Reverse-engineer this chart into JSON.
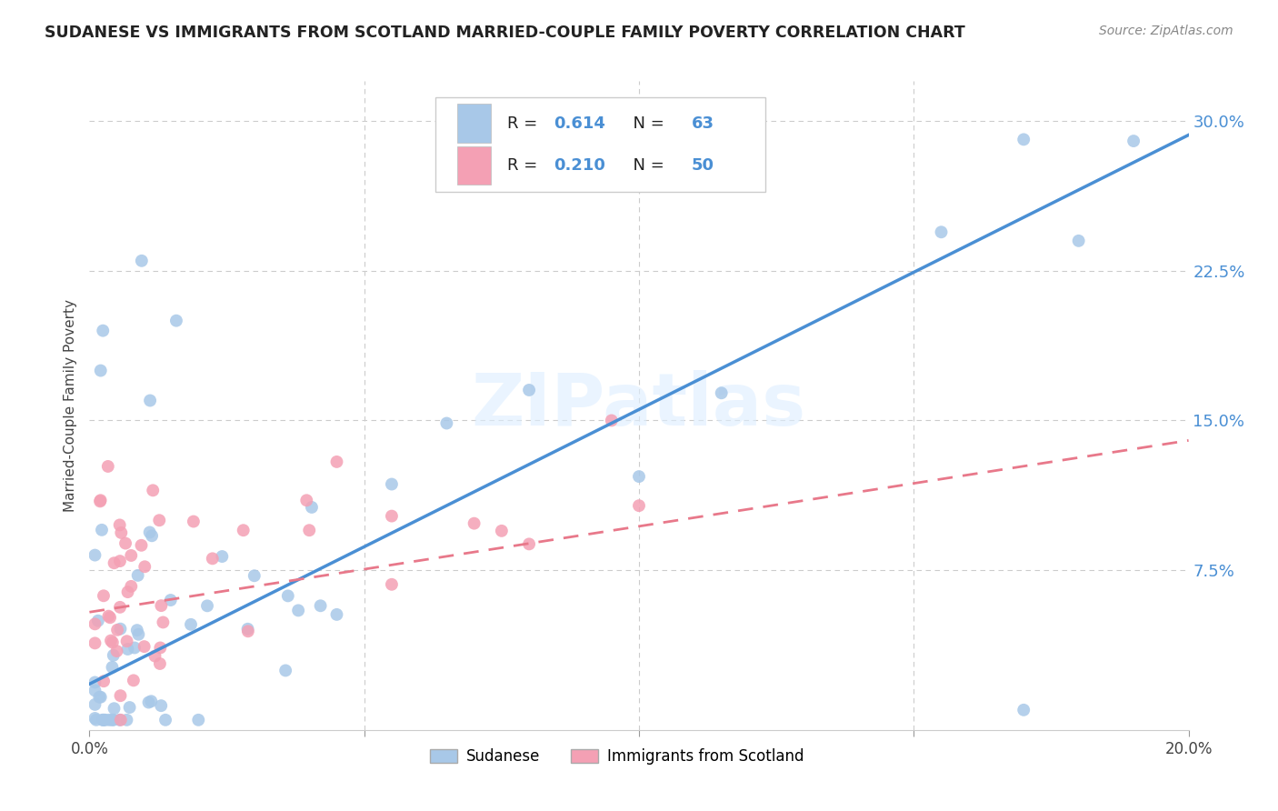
{
  "title": "SUDANESE VS IMMIGRANTS FROM SCOTLAND MARRIED-COUPLE FAMILY POVERTY CORRELATION CHART",
  "source": "Source: ZipAtlas.com",
  "ylabel": "Married-Couple Family Poverty",
  "xlim": [
    0.0,
    0.2
  ],
  "ylim": [
    -0.005,
    0.32
  ],
  "yticks_right": [
    0.075,
    0.15,
    0.225,
    0.3
  ],
  "ytick_right_labels": [
    "7.5%",
    "15.0%",
    "22.5%",
    "30.0%"
  ],
  "sudanese_R": 0.614,
  "sudanese_N": 63,
  "scotland_R": 0.21,
  "scotland_N": 50,
  "sudanese_color": "#a8c8e8",
  "scotland_color": "#f4a0b4",
  "trendline_sudanese_color": "#4a8fd4",
  "trendline_scotland_color": "#e8788a",
  "background_color": "#ffffff",
  "grid_color": "#cccccc",
  "watermark": "ZIPatlas",
  "trendline_sud_x0": 0.0,
  "trendline_sud_y0": 0.018,
  "trendline_sud_x1": 0.2,
  "trendline_sud_y1": 0.293,
  "trendline_scot_x0": 0.0,
  "trendline_scot_y0": 0.054,
  "trendline_scot_x1": 0.2,
  "trendline_scot_y1": 0.14,
  "legend_label_sudanese": "Sudanese",
  "legend_label_scotland": "Immigrants from Scotland"
}
